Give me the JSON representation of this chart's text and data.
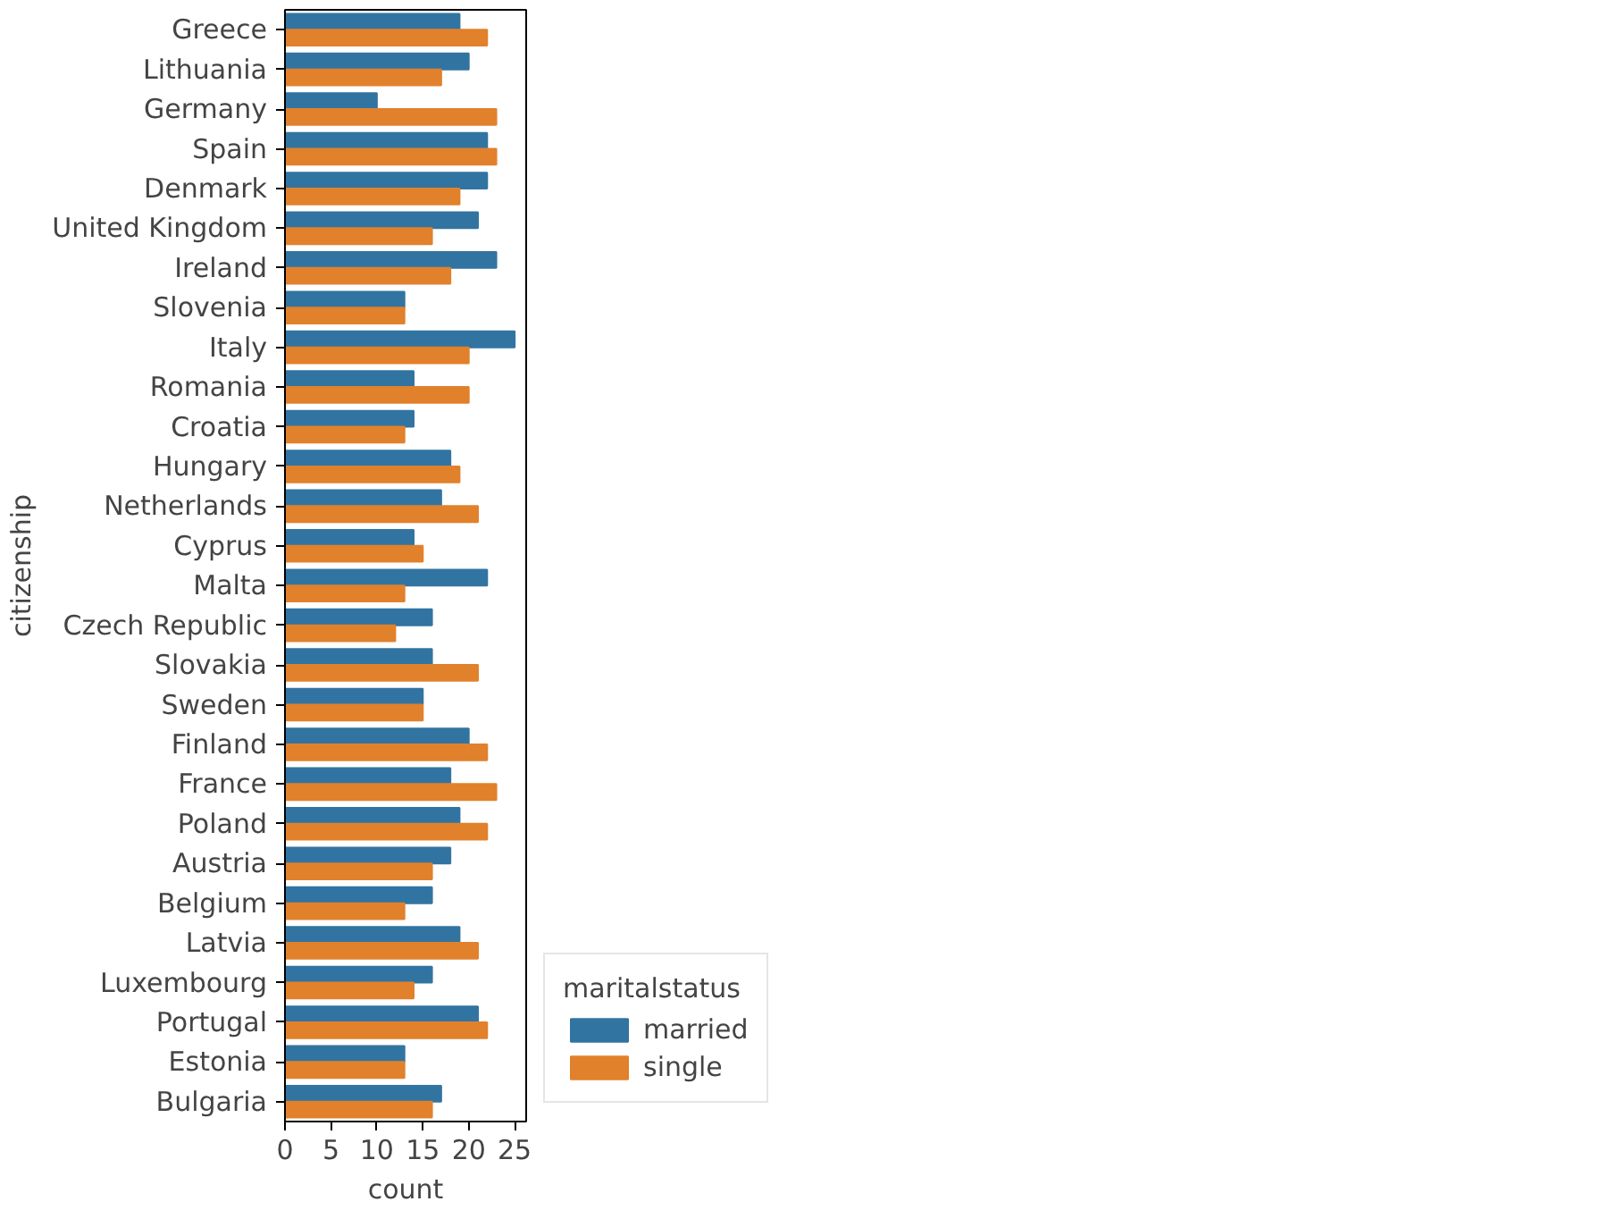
{
  "chart_data": {
    "type": "bar",
    "orientation": "horizontal",
    "xlabel": "count",
    "ylabel": "citizenship",
    "legend_title": "maritalstatus",
    "categories": [
      "Greece",
      "Lithuania",
      "Germany",
      "Spain",
      "Denmark",
      "United Kingdom",
      "Ireland",
      "Slovenia",
      "Italy",
      "Romania",
      "Croatia",
      "Hungary",
      "Netherlands",
      "Cyprus",
      "Malta",
      "Czech Republic",
      "Slovakia",
      "Sweden",
      "Finland",
      "France",
      "Poland",
      "Austria",
      "Belgium",
      "Latvia",
      "Luxembourg",
      "Portugal",
      "Estonia",
      "Bulgaria"
    ],
    "series": [
      {
        "name": "married",
        "color": "#3274a1",
        "values": [
          19,
          20,
          10,
          22,
          22,
          21,
          23,
          13,
          25,
          14,
          14,
          18,
          17,
          14,
          22,
          16,
          16,
          15,
          20,
          18,
          19,
          18,
          16,
          19,
          16,
          21,
          13,
          17
        ]
      },
      {
        "name": "single",
        "color": "#e1812c",
        "values": [
          22,
          17,
          23,
          23,
          19,
          16,
          18,
          13,
          20,
          20,
          13,
          19,
          21,
          15,
          13,
          12,
          21,
          15,
          22,
          23,
          22,
          16,
          13,
          21,
          14,
          22,
          13,
          16
        ]
      }
    ],
    "xlim": [
      0,
      26.25
    ],
    "xticks": [
      0,
      5,
      10,
      15,
      20,
      25
    ],
    "grid": false,
    "legend": "bottom right"
  }
}
